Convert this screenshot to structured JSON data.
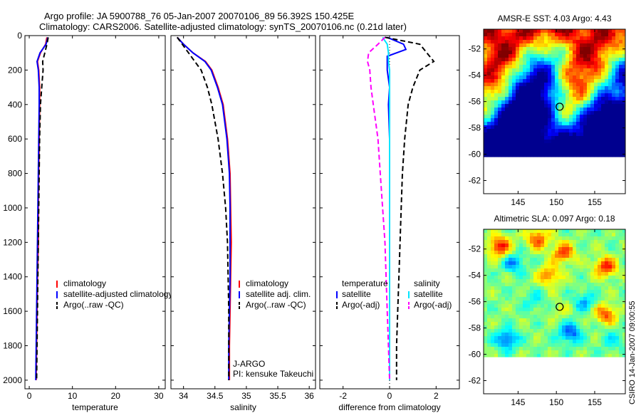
{
  "header": {
    "title_line1": "Argo profile: JA 5900788_76 05-Jan-2007 20070106_89 56.392S 150.425E",
    "title_line2": "Climatology: CARS2006. Satellite-adjusted climatology: synTS_20070106.nc (0.21d later)"
  },
  "side_credit": "CSIRO 14-Jan-2007 09:00:55",
  "colors": {
    "climatology": "#ff0000",
    "satellite": "#0000ff",
    "argo": "#000000",
    "satellite_diff_sal": "#00e5ff",
    "argo_diff_sal": "#ff00ff"
  },
  "chart_data": [
    {
      "type": "line",
      "id": "temperature",
      "xlabel": "temperature",
      "ylabel": "",
      "xlim": [
        -1,
        31.5
      ],
      "ylim": [
        2050,
        0
      ],
      "xticks": [
        0,
        10,
        20,
        30
      ],
      "yticks": [
        0,
        200,
        400,
        600,
        800,
        1000,
        1200,
        1400,
        1600,
        1800,
        2000
      ],
      "legend": [
        "climatology",
        "satellite-adjusted climatology",
        "Argo(..raw -QC)"
      ],
      "series": [
        {
          "name": "climatology",
          "style": "solid",
          "x": [
            4.1,
            3.8,
            2.6,
            1.9,
            2.2,
            2.4,
            2.4,
            2.3,
            2.2,
            2.1,
            2.1,
            1.9,
            1.8,
            1.7,
            1.6
          ],
          "y": [
            10,
            50,
            100,
            150,
            200,
            300,
            400,
            600,
            800,
            1000,
            1200,
            1400,
            1600,
            1800,
            2000
          ]
        },
        {
          "name": "satellite-adjusted climatology",
          "style": "solid",
          "x": [
            4.3,
            3.9,
            2.5,
            1.8,
            2.1,
            2.3,
            2.3,
            2.2,
            2.1,
            2.0,
            1.9,
            1.8,
            1.7,
            1.6,
            1.5
          ],
          "y": [
            10,
            50,
            100,
            150,
            200,
            300,
            400,
            600,
            800,
            1000,
            1200,
            1400,
            1600,
            1800,
            2000
          ]
        },
        {
          "name": "Argo(..raw -QC)",
          "style": "dashed",
          "x": [
            4.4,
            4.1,
            3.6,
            3.1,
            3.2,
            2.9,
            2.6,
            2.4,
            2.3,
            2.2,
            2.1,
            2.0,
            1.9,
            1.8,
            1.7
          ],
          "y": [
            10,
            50,
            100,
            150,
            200,
            300,
            400,
            600,
            800,
            1000,
            1200,
            1400,
            1600,
            1800,
            2000
          ]
        }
      ]
    },
    {
      "type": "line",
      "id": "salinity",
      "xlabel": "salinity",
      "ylabel": "",
      "xlim": [
        33.8,
        36.1
      ],
      "ylim": [
        2050,
        0
      ],
      "xticks": [
        34,
        34.5,
        35,
        35.5,
        36
      ],
      "xtick_labels": [
        "34",
        "34.5",
        "35",
        "35.5",
        "36"
      ],
      "yticks": [
        0,
        200,
        400,
        600,
        800,
        1000,
        1200,
        1400,
        1600,
        1800,
        2000
      ],
      "legend": [
        "climatology",
        "satellite adj. clim.",
        "Argo(..raw -QC)"
      ],
      "annotation_lines": [
        "J-ARGO",
        "PI: kensuke Takeuchi"
      ],
      "series": [
        {
          "name": "climatology",
          "style": "solid",
          "x": [
            33.9,
            34.0,
            34.15,
            34.35,
            34.45,
            34.55,
            34.63,
            34.7,
            34.74,
            34.75,
            34.76,
            34.75,
            34.74,
            34.73,
            34.73
          ],
          "y": [
            10,
            50,
            100,
            150,
            200,
            300,
            400,
            600,
            800,
            1000,
            1200,
            1400,
            1600,
            1800,
            2000
          ]
        },
        {
          "name": "satellite adj. clim.",
          "style": "solid",
          "x": [
            33.9,
            34.0,
            34.15,
            34.34,
            34.44,
            34.54,
            34.62,
            34.69,
            34.73,
            34.74,
            34.74,
            34.74,
            34.73,
            34.72,
            34.72
          ],
          "y": [
            10,
            50,
            100,
            150,
            200,
            300,
            400,
            600,
            800,
            1000,
            1200,
            1400,
            1600,
            1800,
            2000
          ]
        },
        {
          "name": "Argo(..raw -QC)",
          "style": "dashed",
          "x": [
            33.9,
            33.98,
            34.08,
            34.18,
            34.28,
            34.38,
            34.45,
            34.55,
            34.62,
            34.67,
            34.7,
            34.71,
            34.72,
            34.72,
            34.72
          ],
          "y": [
            10,
            50,
            100,
            150,
            200,
            300,
            400,
            600,
            800,
            1000,
            1200,
            1400,
            1600,
            1800,
            2000
          ]
        }
      ]
    },
    {
      "type": "line",
      "id": "difference",
      "xlabel": "difference from climatology",
      "ylabel": "",
      "xlim": [
        -3,
        3
      ],
      "ylim": [
        2050,
        0
      ],
      "xticks": [
        -2,
        0,
        2
      ],
      "yticks": [
        0,
        200,
        400,
        600,
        800,
        1000,
        1200,
        1400,
        1600,
        1800,
        2000
      ],
      "legend_headers": [
        "temperature",
        "salinity"
      ],
      "legend": [
        "satellite",
        "Argo(-adj)",
        "satellite",
        "Argo(-adj)"
      ],
      "series": [
        {
          "name": "satellite",
          "group": "temperature",
          "style": "solid",
          "x": [
            -0.1,
            0.6,
            0.7,
            -0.1,
            -0.1,
            0.0,
            -0.05,
            0.0,
            0.0,
            0.0,
            0.0,
            0.0,
            0.0,
            0.0,
            0.0
          ],
          "y": [
            10,
            50,
            80,
            120,
            200,
            300,
            400,
            600,
            800,
            1000,
            1200,
            1400,
            1600,
            1800,
            2000
          ]
        },
        {
          "name": "Argo(-adj)",
          "group": "temperature",
          "style": "dashed",
          "x": [
            -0.2,
            1.3,
            1.6,
            1.9,
            1.3,
            1.0,
            0.8,
            0.65,
            0.55,
            0.5,
            0.45,
            0.4,
            0.35,
            0.3,
            0.3
          ],
          "y": [
            10,
            50,
            100,
            150,
            200,
            300,
            400,
            600,
            800,
            1000,
            1200,
            1400,
            1600,
            1800,
            2000
          ]
        },
        {
          "name": "satellite",
          "group": "salinity",
          "style": "solid",
          "x": [
            -0.3,
            -0.1,
            -0.05,
            -0.05,
            0.0,
            0.0,
            0.0,
            0.0,
            0.0,
            0.0,
            0.0,
            0.0,
            0.0,
            0.0,
            0.0
          ],
          "y": [
            10,
            50,
            100,
            150,
            200,
            300,
            400,
            600,
            800,
            1000,
            1200,
            1400,
            1600,
            1800,
            2000
          ]
        },
        {
          "name": "Argo(-adj)",
          "group": "salinity",
          "style": "dashed",
          "x": [
            -0.2,
            -0.5,
            -0.9,
            -0.95,
            -0.85,
            -0.8,
            -0.7,
            -0.5,
            -0.4,
            -0.3,
            -0.2,
            -0.15,
            -0.1,
            -0.05,
            0.0
          ],
          "y": [
            10,
            50,
            100,
            150,
            200,
            300,
            400,
            600,
            800,
            1000,
            1200,
            1400,
            1600,
            1800,
            2000
          ]
        }
      ]
    },
    {
      "type": "heatmap",
      "id": "sst_map",
      "title": "AMSR-E SST: 4.03 Argo: 4.43",
      "xlim": [
        140.5,
        159
      ],
      "ylim": [
        -63,
        -50.5
      ],
      "xticks": [
        145,
        150,
        155
      ],
      "yticks": [
        -52,
        -54,
        -56,
        -58,
        -60,
        -62
      ],
      "data_extent_lat": [
        -60.2,
        -50.5
      ],
      "colormap": [
        "#00008f",
        "#0000ff",
        "#0080ff",
        "#00ffff",
        "#80ff80",
        "#ffff00",
        "#ff8000",
        "#ff0000",
        "#800000"
      ],
      "marker": {
        "lon": 150.425,
        "lat": -56.392
      }
    },
    {
      "type": "heatmap",
      "id": "sla_map",
      "title": "Altimetric SLA: 0.097 Argo: 0.18",
      "xlim": [
        140.5,
        159
      ],
      "ylim": [
        -63,
        -50.5
      ],
      "xticks": [
        145,
        150,
        155
      ],
      "yticks": [
        -52,
        -54,
        -56,
        -58,
        -60,
        -62
      ],
      "data_extent_lat": [
        -60.2,
        -50.5
      ],
      "colormap": [
        "#00008f",
        "#0000ff",
        "#0080ff",
        "#00ffff",
        "#80ff80",
        "#ffff00",
        "#ff8000",
        "#ff0000",
        "#800000"
      ],
      "marker": {
        "lon": 150.425,
        "lat": -56.392
      }
    }
  ]
}
